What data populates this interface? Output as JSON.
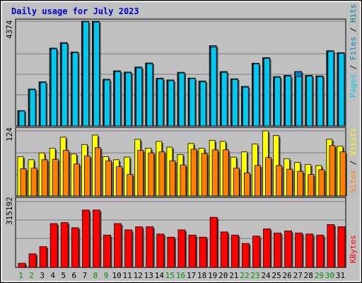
{
  "title": "Daily usage for July 2023",
  "colors": {
    "background": "#c0c0c0",
    "pages": "#00c8f0",
    "files": "#0080c0",
    "hits": "#008080",
    "sites": "#ff8000",
    "visits": "#ffff00",
    "kbytes": "#ff0000",
    "title": "#0000cc",
    "weekend_label": "#009000"
  },
  "chart_data": [
    {
      "type": "bar",
      "title": "Daily usage for July 2023",
      "ymax_label": "4374",
      "ylim": [
        0,
        4374
      ],
      "legend": [
        "Pages",
        "Files",
        "Hits"
      ],
      "categories": [
        "1",
        "2",
        "3",
        "4",
        "5",
        "6",
        "7",
        "8",
        "9",
        "10",
        "11",
        "12",
        "13",
        "14",
        "15",
        "16",
        "17",
        "18",
        "19",
        "20",
        "21",
        "22",
        "23",
        "24",
        "25",
        "26",
        "27",
        "28",
        "29",
        "30",
        "31"
      ],
      "series": [
        {
          "name": "Hits",
          "values": [
            640,
            1540,
            1840,
            3250,
            3480,
            3090,
            4370,
            4370,
            1950,
            2300,
            2250,
            2460,
            2630,
            1990,
            1920,
            2240,
            2000,
            1880,
            3350,
            2270,
            1970,
            1650,
            2620,
            2850,
            2060,
            2110,
            2270,
            2110,
            2090,
            3140,
            3060
          ]
        },
        {
          "name": "Files",
          "values": [
            640,
            1540,
            1840,
            3250,
            3480,
            3090,
            4370,
            4370,
            1950,
            2300,
            2250,
            2460,
            2630,
            1990,
            1920,
            2240,
            2000,
            1880,
            3350,
            2270,
            1970,
            1650,
            2620,
            2850,
            2060,
            2110,
            2270,
            2110,
            2090,
            3140,
            3060
          ]
        },
        {
          "name": "Pages",
          "values": [
            620,
            1510,
            1810,
            3220,
            3440,
            3060,
            4350,
            4340,
            1920,
            2260,
            2220,
            2420,
            2600,
            1960,
            1890,
            2210,
            1980,
            1840,
            3290,
            2240,
            1940,
            1620,
            2590,
            2820,
            2030,
            2080,
            2050,
            2080,
            2060,
            3110,
            3030
          ]
        }
      ]
    },
    {
      "type": "bar",
      "ymax_label": "124",
      "ylim": [
        0,
        124
      ],
      "legend": [
        "Sites",
        "Visits"
      ],
      "categories": [
        "1",
        "2",
        "3",
        "4",
        "5",
        "6",
        "7",
        "8",
        "9",
        "10",
        "11",
        "12",
        "13",
        "14",
        "15",
        "16",
        "17",
        "18",
        "19",
        "20",
        "21",
        "22",
        "23",
        "24",
        "25",
        "26",
        "27",
        "28",
        "29",
        "30",
        "31"
      ],
      "series": [
        {
          "name": "Visits",
          "values": [
            75,
            69,
            82,
            91,
            112,
            80,
            98,
            116,
            75,
            69,
            74,
            108,
            91,
            104,
            93,
            79,
            100,
            91,
            106,
            104,
            74,
            84,
            99,
            124,
            115,
            71,
            64,
            60,
            58,
            108,
            95
          ]
        },
        {
          "name": "Sites",
          "values": [
            52,
            53,
            69,
            70,
            87,
            61,
            76,
            92,
            67,
            56,
            41,
            87,
            82,
            84,
            67,
            59,
            89,
            81,
            88,
            88,
            53,
            44,
            58,
            73,
            58,
            51,
            47,
            41,
            50,
            96,
            84
          ]
        }
      ]
    },
    {
      "type": "bar",
      "ymax_label": "315192",
      "ylim": [
        0,
        315192
      ],
      "legend": [
        "KBytes"
      ],
      "categories": [
        "1",
        "2",
        "3",
        "4",
        "5",
        "6",
        "7",
        "8",
        "9",
        "10",
        "11",
        "12",
        "13",
        "14",
        "15",
        "16",
        "17",
        "18",
        "19",
        "20",
        "21",
        "22",
        "23",
        "24",
        "25",
        "26",
        "27",
        "28",
        "29",
        "30",
        "31"
      ],
      "series": [
        {
          "name": "KBytes",
          "values": [
            20000,
            65000,
            100000,
            210000,
            215000,
            190000,
            275000,
            275000,
            155000,
            210000,
            180000,
            195000,
            195000,
            160000,
            145000,
            180000,
            155000,
            145000,
            240000,
            170000,
            155000,
            115000,
            150000,
            185000,
            165000,
            175000,
            165000,
            160000,
            155000,
            205000,
            195000
          ]
        }
      ]
    }
  ],
  "weekend_days": [
    "1",
    "2",
    "8",
    "9",
    "15",
    "16",
    "22",
    "23",
    "29",
    "30"
  ],
  "side_labels": {
    "top": [
      {
        "text": "Pages",
        "color": "#00c8f0"
      },
      {
        "text": " / ",
        "color": "#000000"
      },
      {
        "text": "Files",
        "color": "#0080c0"
      },
      {
        "text": " / ",
        "color": "#000000"
      },
      {
        "text": "Hits",
        "color": "#008080"
      }
    ],
    "mid": [
      {
        "text": "Sites",
        "color": "#ff8000"
      },
      {
        "text": " / ",
        "color": "#000000"
      },
      {
        "text": "Visits",
        "color": "#ffff00"
      }
    ],
    "bot": [
      {
        "text": "KBytes",
        "color": "#ff0000"
      }
    ]
  }
}
